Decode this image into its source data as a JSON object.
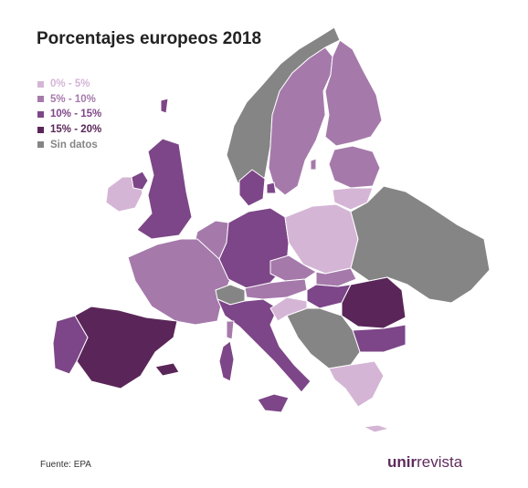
{
  "title": "Porcentajes europeos 2018",
  "legend": [
    {
      "label": "0% - 5%",
      "color": "#d5b5d6"
    },
    {
      "label": "5% - 10%",
      "color": "#a57aab"
    },
    {
      "label": "10% - 15%",
      "color": "#7d4688"
    },
    {
      "label": "15% - 20%",
      "color": "#5a2659"
    },
    {
      "label": "Sin datos",
      "color": "#858585"
    }
  ],
  "map_regions": [
    {
      "name": "Iceland-Norway",
      "category": "Sin datos"
    },
    {
      "name": "Sweden",
      "category": "5% - 10%"
    },
    {
      "name": "Finland",
      "category": "5% - 10%"
    },
    {
      "name": "Baltics",
      "category": "5% - 10%"
    },
    {
      "name": "Lithuania",
      "category": "0% - 5%"
    },
    {
      "name": "Ireland",
      "category": "0% - 5%"
    },
    {
      "name": "United Kingdom",
      "category": "10% - 15%"
    },
    {
      "name": "Denmark",
      "category": "10% - 15%"
    },
    {
      "name": "Benelux",
      "category": "5% - 10%"
    },
    {
      "name": "France",
      "category": "5% - 10%"
    },
    {
      "name": "Germany",
      "category": "10% - 15%"
    },
    {
      "name": "Poland",
      "category": "0% - 5%"
    },
    {
      "name": "Belarus-Ukraine",
      "category": "Sin datos"
    },
    {
      "name": "Czechia",
      "category": "5% - 10%"
    },
    {
      "name": "Slovakia",
      "category": "5% - 10%"
    },
    {
      "name": "Austria",
      "category": "5% - 10%"
    },
    {
      "name": "Hungary",
      "category": "10% - 15%"
    },
    {
      "name": "Switzerland",
      "category": "Sin datos"
    },
    {
      "name": "Italy",
      "category": "10% - 15%"
    },
    {
      "name": "Romania",
      "category": "15% - 20%"
    },
    {
      "name": "Bulgaria",
      "category": "10% - 15%"
    },
    {
      "name": "Balkans",
      "category": "Sin datos"
    },
    {
      "name": "Slovenia-Croatia",
      "category": "0% - 5%"
    },
    {
      "name": "Greece",
      "category": "0% - 5%"
    },
    {
      "name": "Spain",
      "category": "15% - 20%"
    },
    {
      "name": "Portugal",
      "category": "10% - 15%"
    }
  ],
  "source": "Fuente: EPA",
  "logo": {
    "bold": "unir",
    "regular": "revista"
  }
}
